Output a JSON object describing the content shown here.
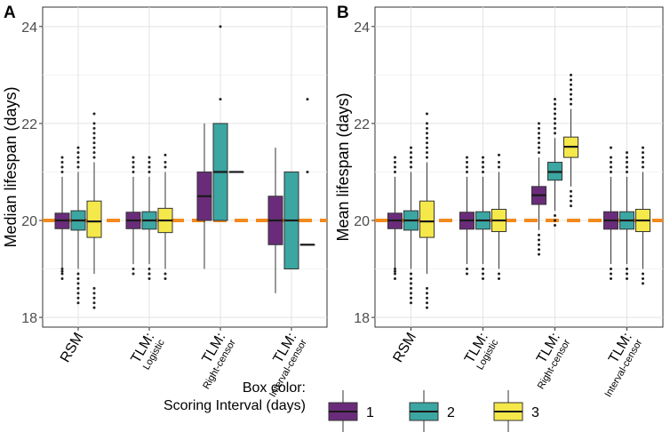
{
  "chart_data": [
    {
      "panel": "A",
      "type": "boxplot",
      "ylabel": "Median lifespan (days)",
      "ylim": [
        17.8,
        24.4
      ],
      "yticks": [
        18,
        20,
        22,
        24
      ],
      "reference_line": 20,
      "categories": [
        {
          "main": "RSM",
          "sub": ""
        },
        {
          "main": "TLM:",
          "sub": "Logistic"
        },
        {
          "main": "TLM:",
          "sub": "Right-censor"
        },
        {
          "main": "TLM:",
          "sub": "Interval-censor"
        }
      ],
      "series": [
        {
          "name": "1",
          "boxes": [
            {
              "q1": 19.83,
              "med": 20.0,
              "q3": 20.15,
              "wlo": 19.0,
              "whi": 20.9,
              "outliers": [
                18.8,
                18.9,
                18.95,
                19.0,
                21.0,
                21.1,
                21.2,
                21.3
              ]
            },
            {
              "q1": 19.83,
              "med": 20.0,
              "q3": 20.17,
              "wlo": 19.1,
              "whi": 20.9,
              "outliers": [
                18.9,
                19.0,
                21.0,
                21.1,
                21.2,
                21.3
              ]
            },
            {
              "q1": 20.0,
              "med": 20.5,
              "q3": 21.0,
              "wlo": 19.0,
              "whi": 22.0,
              "outliers": []
            },
            {
              "q1": 19.5,
              "med": 20.0,
              "q3": 20.5,
              "wlo": 18.5,
              "whi": 21.5,
              "outliers": []
            }
          ]
        },
        {
          "name": "2",
          "boxes": [
            {
              "q1": 19.8,
              "med": 20.0,
              "q3": 20.2,
              "wlo": 19.0,
              "whi": 21.0,
              "outliers": [
                18.3,
                18.4,
                18.5,
                18.6,
                18.7,
                18.8,
                18.9,
                21.1,
                21.2,
                21.3,
                21.4,
                21.5
              ]
            },
            {
              "q1": 19.82,
              "med": 20.0,
              "q3": 20.18,
              "wlo": 19.1,
              "whi": 20.9,
              "outliers": [
                18.8,
                18.9,
                19.0,
                21.0,
                21.1,
                21.2,
                21.3
              ]
            },
            {
              "q1": 20.0,
              "med": 21.0,
              "q3": 22.0,
              "wlo": 20.0,
              "whi": 22.0,
              "outliers": [
                22.5,
                24.0
              ]
            },
            {
              "q1": 19.0,
              "med": 20.0,
              "q3": 21.0,
              "wlo": 19.0,
              "whi": 21.0,
              "outliers": []
            }
          ]
        },
        {
          "name": "3",
          "boxes": [
            {
              "q1": 19.65,
              "med": 19.98,
              "q3": 20.4,
              "wlo": 18.9,
              "whi": 21.2,
              "outliers": [
                18.2,
                18.3,
                18.4,
                18.5,
                18.6,
                21.3,
                21.4,
                21.5,
                21.6,
                21.7,
                21.8,
                21.9,
                22.0,
                22.2
              ]
            },
            {
              "q1": 19.75,
              "med": 20.0,
              "q3": 20.25,
              "wlo": 19.0,
              "whi": 21.0,
              "outliers": [
                18.8,
                18.9,
                21.1,
                21.2,
                21.35
              ]
            },
            {
              "q1": 21.0,
              "med": 21.0,
              "q3": 21.0,
              "wlo": 21.0,
              "whi": 21.0,
              "outliers": []
            },
            {
              "q1": 19.5,
              "med": 19.5,
              "q3": 19.5,
              "wlo": 19.5,
              "whi": 19.5,
              "outliers": [
                21.0,
                22.5
              ]
            }
          ]
        }
      ]
    },
    {
      "panel": "B",
      "type": "boxplot",
      "ylabel": "Mean lifespan (days)",
      "ylim": [
        17.8,
        24.4
      ],
      "yticks": [
        18,
        20,
        22,
        24
      ],
      "reference_line": 20,
      "categories": [
        {
          "main": "RSM",
          "sub": ""
        },
        {
          "main": "TLM:",
          "sub": "Logistic"
        },
        {
          "main": "TLM:",
          "sub": "Right-censor"
        },
        {
          "main": "TLM:",
          "sub": "Interval-censor"
        }
      ],
      "series": [
        {
          "name": "1",
          "boxes": [
            {
              "q1": 19.83,
              "med": 20.0,
              "q3": 20.15,
              "wlo": 19.0,
              "whi": 20.9,
              "outliers": [
                18.8,
                18.9,
                18.95,
                19.0,
                21.0,
                21.1,
                21.2,
                21.3
              ]
            },
            {
              "q1": 19.82,
              "med": 20.0,
              "q3": 20.17,
              "wlo": 19.1,
              "whi": 20.9,
              "outliers": [
                18.9,
                19.0,
                21.0,
                21.1,
                21.2,
                21.3
              ]
            },
            {
              "q1": 20.33,
              "med": 20.52,
              "q3": 20.7,
              "wlo": 19.8,
              "whi": 21.3,
              "outliers": [
                19.3,
                19.4,
                19.5,
                19.6,
                19.7,
                21.4,
                21.5,
                21.6,
                21.7,
                21.8,
                21.9,
                22.0
              ]
            },
            {
              "q1": 19.82,
              "med": 20.0,
              "q3": 20.18,
              "wlo": 19.1,
              "whi": 20.9,
              "outliers": [
                18.8,
                18.9,
                19.0,
                21.0,
                21.1,
                21.2,
                21.3,
                21.5
              ]
            }
          ]
        },
        {
          "name": "2",
          "boxes": [
            {
              "q1": 19.8,
              "med": 20.0,
              "q3": 20.2,
              "wlo": 19.0,
              "whi": 21.0,
              "outliers": [
                18.3,
                18.4,
                18.5,
                18.6,
                18.7,
                18.8,
                18.9,
                21.1,
                21.2,
                21.3,
                21.4,
                21.5
              ]
            },
            {
              "q1": 19.82,
              "med": 20.0,
              "q3": 20.18,
              "wlo": 19.1,
              "whi": 20.9,
              "outliers": [
                18.8,
                18.9,
                19.0,
                21.0,
                21.1,
                21.2,
                21.3
              ]
            },
            {
              "q1": 20.83,
              "med": 21.0,
              "q3": 21.2,
              "wlo": 20.2,
              "whi": 21.7,
              "outliers": [
                19.9,
                20.0,
                20.1,
                21.8,
                21.9,
                22.0,
                22.1,
                22.2,
                22.3,
                22.4,
                22.5
              ]
            },
            {
              "q1": 19.82,
              "med": 20.0,
              "q3": 20.18,
              "wlo": 19.1,
              "whi": 20.9,
              "outliers": [
                18.8,
                18.9,
                19.0,
                21.0,
                21.1,
                21.2,
                21.3,
                21.4
              ]
            }
          ]
        },
        {
          "name": "3",
          "boxes": [
            {
              "q1": 19.65,
              "med": 19.98,
              "q3": 20.4,
              "wlo": 18.9,
              "whi": 21.2,
              "outliers": [
                18.2,
                18.3,
                18.4,
                18.5,
                18.6,
                21.3,
                21.4,
                21.5,
                21.6,
                21.7,
                21.8,
                21.9,
                22.0,
                22.2
              ]
            },
            {
              "q1": 19.77,
              "med": 20.0,
              "q3": 20.23,
              "wlo": 19.0,
              "whi": 21.0,
              "outliers": [
                18.8,
                18.9,
                21.1,
                21.2,
                21.35
              ]
            },
            {
              "q1": 21.3,
              "med": 21.52,
              "q3": 21.72,
              "wlo": 20.7,
              "whi": 22.3,
              "outliers": [
                20.3,
                20.4,
                20.5,
                20.6,
                22.4,
                22.5,
                22.6,
                22.7,
                22.8,
                22.9,
                23.0
              ]
            },
            {
              "q1": 19.77,
              "med": 20.0,
              "q3": 20.23,
              "wlo": 19.0,
              "whi": 21.0,
              "outliers": [
                18.7,
                18.8,
                18.9,
                21.1,
                21.2,
                21.3,
                21.4,
                21.5
              ]
            }
          ]
        }
      ]
    }
  ],
  "legend": {
    "title_line1": "Box color:",
    "title_line2": "Scoring Interval (days)",
    "items": [
      {
        "label": "1",
        "color": "#6A2C7A"
      },
      {
        "label": "2",
        "color": "#3BA6A2"
      },
      {
        "label": "3",
        "color": "#F5E84A"
      }
    ]
  },
  "colors": {
    "reference_line": "#F28A1C",
    "outline": "#333333",
    "outlier": "#222222"
  }
}
